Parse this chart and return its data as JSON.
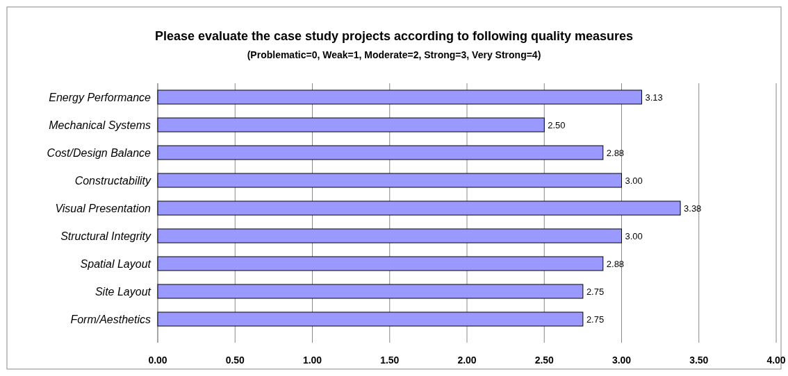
{
  "chart_data": {
    "type": "bar",
    "orientation": "horizontal",
    "title": "Please evaluate the case study projects according to following quality measures",
    "subtitle": "(Problematic=0, Weak=1, Moderate=2, Strong=3, Very Strong=4)",
    "categories": [
      "Energy Performance",
      "Mechanical Systems",
      "Cost/Design Balance",
      "Constructability",
      "Visual Presentation",
      "Structural Integrity",
      "Spatial Layout",
      "Site Layout",
      "Form/Aesthetics"
    ],
    "values": [
      3.13,
      2.5,
      2.88,
      3.0,
      3.38,
      3.0,
      2.88,
      2.75,
      2.75
    ],
    "value_labels": [
      "3.13",
      "2.50",
      "2.88",
      "3.00",
      "3.38",
      "3.00",
      "2.88",
      "2.75",
      "2.75"
    ],
    "color": "#9999ff",
    "xlim": [
      0,
      4
    ],
    "xticks": [
      {
        "value": 0,
        "label": "0.00"
      },
      {
        "value": 0.5,
        "label": "0.50"
      },
      {
        "value": 1,
        "label": "1.00"
      },
      {
        "value": 1.5,
        "label": "1.50"
      },
      {
        "value": 2,
        "label": "2.00"
      },
      {
        "value": 2.5,
        "label": "2.50"
      },
      {
        "value": 3,
        "label": "3.00"
      },
      {
        "value": 3.5,
        "label": "3.50"
      },
      {
        "value": 4,
        "label": "4.00"
      }
    ],
    "grid": "x"
  }
}
